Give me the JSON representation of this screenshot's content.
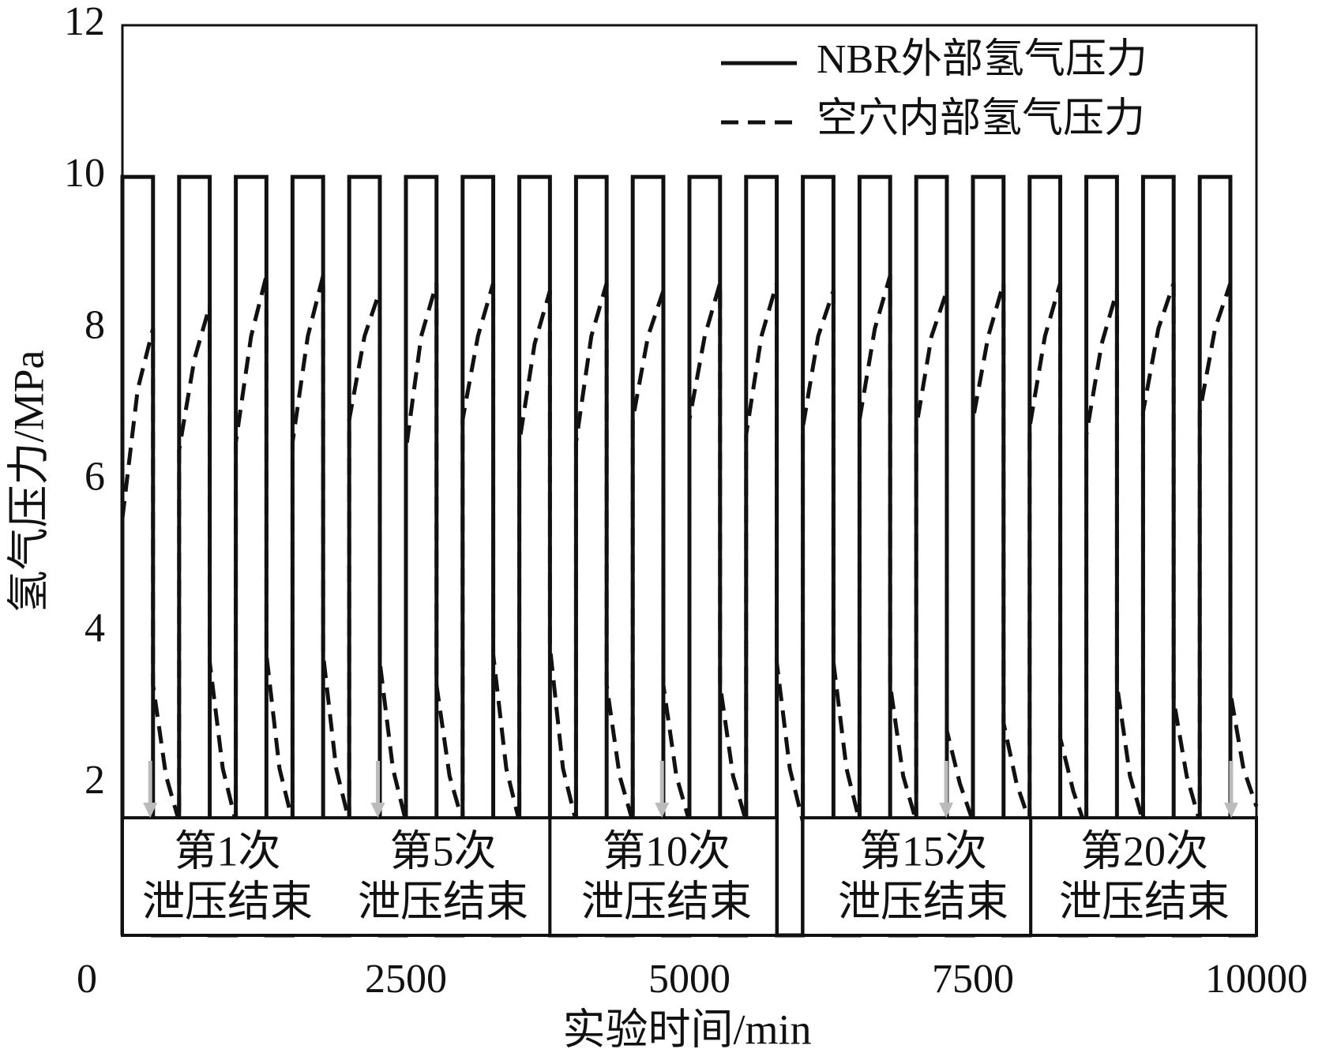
{
  "chart_data": {
    "type": "line",
    "x_label": "实验时间/min",
    "y_label": "氢气压力/MPa",
    "xlim": [
      0,
      10000
    ],
    "xticks": [
      0,
      2500,
      5000,
      7500,
      10000
    ],
    "ylim": [
      0,
      12
    ],
    "yticks": [
      2,
      4,
      6,
      8,
      10,
      12
    ],
    "legend": "upper right",
    "series": [
      {
        "name": "NBR外部氢气压力",
        "color": "#111111",
        "style": "solid",
        "x": [
          0,
          0,
          270,
          270,
          500,
          500,
          770,
          770,
          1000,
          1000,
          1270,
          1270,
          1500,
          1500,
          1770,
          1770,
          2000,
          2000,
          2270,
          2270,
          2500,
          2500,
          2770,
          2770,
          3000,
          3000,
          3270,
          3270,
          3500,
          3500,
          3770,
          3770,
          4000,
          4000,
          4270,
          4270,
          4500,
          4500,
          4770,
          4770,
          5000,
          5000,
          5270,
          5270,
          5500,
          5500,
          5770,
          5770,
          6000,
          6000,
          6270,
          6270,
          6500,
          6500,
          6770,
          6770,
          7000,
          7000,
          7270,
          7270,
          7500,
          7500,
          7770,
          7770,
          8000,
          8000,
          8270,
          8270,
          8500,
          8500,
          8770,
          8770,
          9000,
          9000,
          9270,
          9270,
          9500,
          9500,
          9770,
          9770,
          10000
        ],
        "values": [
          0,
          10,
          10,
          0,
          0,
          10,
          10,
          0,
          0,
          10,
          10,
          0,
          0,
          10,
          10,
          0,
          0,
          10,
          10,
          0,
          0,
          10,
          10,
          0,
          0,
          10,
          10,
          0,
          0,
          10,
          10,
          0,
          0,
          10,
          10,
          0,
          0,
          10,
          10,
          0,
          0,
          10,
          10,
          0,
          0,
          10,
          10,
          0,
          0,
          10,
          10,
          0,
          0,
          10,
          10,
          0,
          0,
          10,
          10,
          0,
          0,
          10,
          10,
          0,
          0,
          10,
          10,
          0,
          0,
          10,
          10,
          0,
          0,
          10,
          10,
          0,
          0,
          10,
          10,
          0,
          0
        ]
      },
      {
        "name": "空穴内部氢气压力",
        "color": "#111111",
        "style": "dashed",
        "x": [
          0,
          135,
          270,
          270,
          385,
          500,
          500,
          635,
          770,
          770,
          885,
          1000,
          1000,
          1135,
          1270,
          1270,
          1385,
          1500,
          1500,
          1635,
          1770,
          1770,
          1885,
          2000,
          2000,
          2135,
          2270,
          2270,
          2385,
          2500,
          2500,
          2635,
          2770,
          2770,
          2885,
          3000,
          3000,
          3135,
          3270,
          3270,
          3385,
          3500,
          3500,
          3635,
          3770,
          3770,
          3885,
          4000,
          4000,
          4135,
          4270,
          4270,
          4385,
          4500,
          4500,
          4635,
          4770,
          4770,
          4885,
          5000,
          5000,
          5135,
          5270,
          5270,
          5385,
          5500,
          5500,
          5635,
          5770,
          5770,
          5885,
          6000,
          6000,
          6135,
          6270,
          6270,
          6385,
          6500,
          6500,
          6635,
          6770,
          6770,
          6885,
          7000,
          7000,
          7135,
          7270,
          7270,
          7385,
          7500,
          7500,
          7635,
          7770,
          7770,
          7885,
          8000,
          8000,
          8135,
          8270,
          8270,
          8385,
          8500,
          8500,
          8635,
          8770,
          8770,
          8885,
          9000,
          9000,
          9135,
          9270,
          9270,
          9385,
          9500,
          9500,
          9635,
          9770,
          9770,
          9885,
          10000
        ],
        "values": [
          5.5,
          7.2,
          8.0,
          3.3,
          2.1,
          1.5,
          6.4,
          7.6,
          8.3,
          3.6,
          2.2,
          1.5,
          6.5,
          7.9,
          8.7,
          3.7,
          2.2,
          1.5,
          6.5,
          7.9,
          8.7,
          3.7,
          2.2,
          1.5,
          6.8,
          7.9,
          8.5,
          3.6,
          2.2,
          1.5,
          6.4,
          7.9,
          8.6,
          3.3,
          2.1,
          1.5,
          6.8,
          7.9,
          8.6,
          3.7,
          2.2,
          1.5,
          6.5,
          7.8,
          8.5,
          3.8,
          2.2,
          1.5,
          6.5,
          7.9,
          8.6,
          3.3,
          2.1,
          1.5,
          6.8,
          7.9,
          8.5,
          3.3,
          2.1,
          1.5,
          6.8,
          7.9,
          8.6,
          3.3,
          2.1,
          1.5,
          6.6,
          7.9,
          8.6,
          3.6,
          2.2,
          1.5,
          6.7,
          7.9,
          8.5,
          3.6,
          2.2,
          1.5,
          6.8,
          8.0,
          8.7,
          3.3,
          2.1,
          1.5,
          6.7,
          7.9,
          8.5,
          2.7,
          2.0,
          1.5,
          6.8,
          7.9,
          8.6,
          2.8,
          2.0,
          1.5,
          6.7,
          7.9,
          8.6,
          2.6,
          1.9,
          1.4,
          6.6,
          7.8,
          8.5,
          3.3,
          2.1,
          1.5,
          6.9,
          8.0,
          8.6,
          3.1,
          2.1,
          1.5,
          6.9,
          8.0,
          8.6,
          3.2,
          2.2,
          1.7
        ]
      }
    ],
    "annotations": [
      [
        "第1次",
        "泄压结束"
      ],
      [
        "第5次",
        "泄压结束"
      ],
      [
        "第10次",
        "泄压结束"
      ],
      [
        "第15次",
        "泄压结束"
      ],
      [
        "第20次",
        "泄压结束"
      ]
    ]
  }
}
